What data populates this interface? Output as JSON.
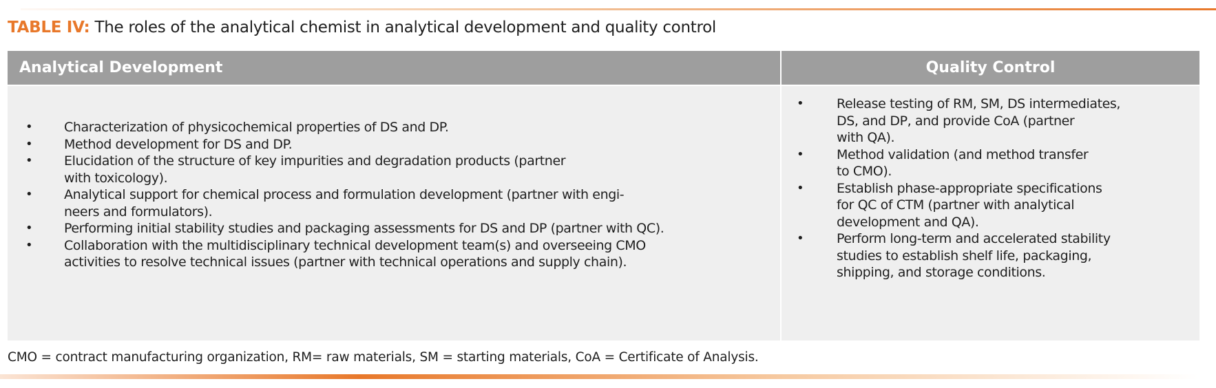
{
  "title": {
    "label": "TABLE IV:",
    "text": " The roles of the analytical chemist in analytical development and quality control"
  },
  "accent_color": "#e8782a",
  "header_color": "#9e9e9e",
  "columns": [
    {
      "header": "Analytical Development",
      "items": [
        {
          "lines": [
            "Characterization of physicochemical properties of DS and DP."
          ]
        },
        {
          "lines": [
            "Method development for DS and DP."
          ]
        },
        {
          "lines": [
            "Elucidation of the structure of key impurities and degradation products (partner",
            "with toxicology)."
          ]
        },
        {
          "lines": [
            "Analytical support for chemical process and formulation development (partner with engi-",
            "neers and formulators)."
          ]
        },
        {
          "lines": [
            "Performing initial stability studies and packaging assessments for DS and DP (partner with QC)."
          ]
        },
        {
          "lines": [
            "Collaboration with the multidisciplinary technical development team(s) and overseeing CMO",
            "activities to resolve technical issues (partner with technical operations and supply chain)."
          ]
        }
      ]
    },
    {
      "header": "Quality Control",
      "items": [
        {
          "lines": [
            "Release testing of RM, SM, DS intermediates,",
            "DS, and DP, and provide CoA (partner",
            "with QA)."
          ]
        },
        {
          "lines": [
            "Method validation (and method transfer",
            "to CMO)."
          ]
        },
        {
          "lines": [
            "Establish phase-appropriate specifications",
            "for QC of CTM (partner with analytical",
            "development and QA)."
          ]
        },
        {
          "lines": [
            "Perform long-term and accelerated stability",
            "studies to establish shelf life, packaging,",
            "shipping, and storage conditions."
          ]
        }
      ]
    }
  ],
  "bullet": "•",
  "footnote": "CMO = contract manufacturing organization, RM= raw materials, SM = starting materials, CoA = Certificate of Analysis."
}
